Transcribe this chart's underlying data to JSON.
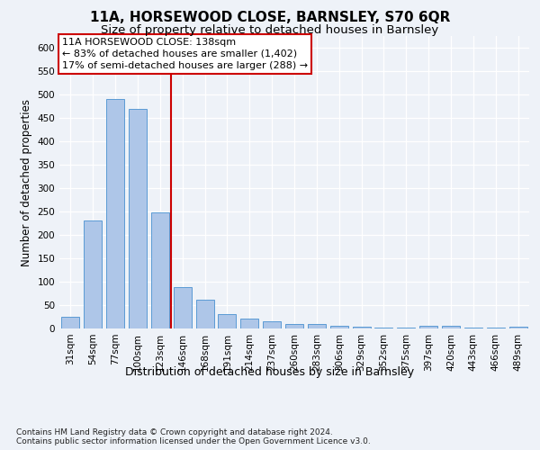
{
  "title": "11A, HORSEWOOD CLOSE, BARNSLEY, S70 6QR",
  "subtitle": "Size of property relative to detached houses in Barnsley",
  "xlabel": "Distribution of detached houses by size in Barnsley",
  "ylabel": "Number of detached properties",
  "categories": [
    "31sqm",
    "54sqm",
    "77sqm",
    "100sqm",
    "123sqm",
    "146sqm",
    "168sqm",
    "191sqm",
    "214sqm",
    "237sqm",
    "260sqm",
    "283sqm",
    "306sqm",
    "329sqm",
    "352sqm",
    "375sqm",
    "397sqm",
    "420sqm",
    "443sqm",
    "466sqm",
    "489sqm"
  ],
  "values": [
    25,
    230,
    490,
    470,
    248,
    88,
    62,
    30,
    22,
    15,
    10,
    10,
    5,
    3,
    2,
    2,
    5,
    5,
    2,
    2,
    3
  ],
  "bar_color": "#aec6e8",
  "bar_edge_color": "#5b9bd5",
  "vline_x": 4.5,
  "vline_color": "#cc0000",
  "annotation_line1": "11A HORSEWOOD CLOSE: 138sqm",
  "annotation_line2": "← 83% of detached houses are smaller (1,402)",
  "annotation_line3": "17% of semi-detached houses are larger (288) →",
  "annotation_box_color": "#ffffff",
  "annotation_box_edge_color": "#cc0000",
  "ylim": [
    0,
    625
  ],
  "yticks": [
    0,
    50,
    100,
    150,
    200,
    250,
    300,
    350,
    400,
    450,
    500,
    550,
    600
  ],
  "background_color": "#eef2f8",
  "plot_background_color": "#eef2f8",
  "footer_text": "Contains HM Land Registry data © Crown copyright and database right 2024.\nContains public sector information licensed under the Open Government Licence v3.0.",
  "title_fontsize": 11,
  "subtitle_fontsize": 9.5,
  "xlabel_fontsize": 9,
  "ylabel_fontsize": 8.5,
  "tick_fontsize": 7.5,
  "annotation_fontsize": 8,
  "footer_fontsize": 6.5
}
